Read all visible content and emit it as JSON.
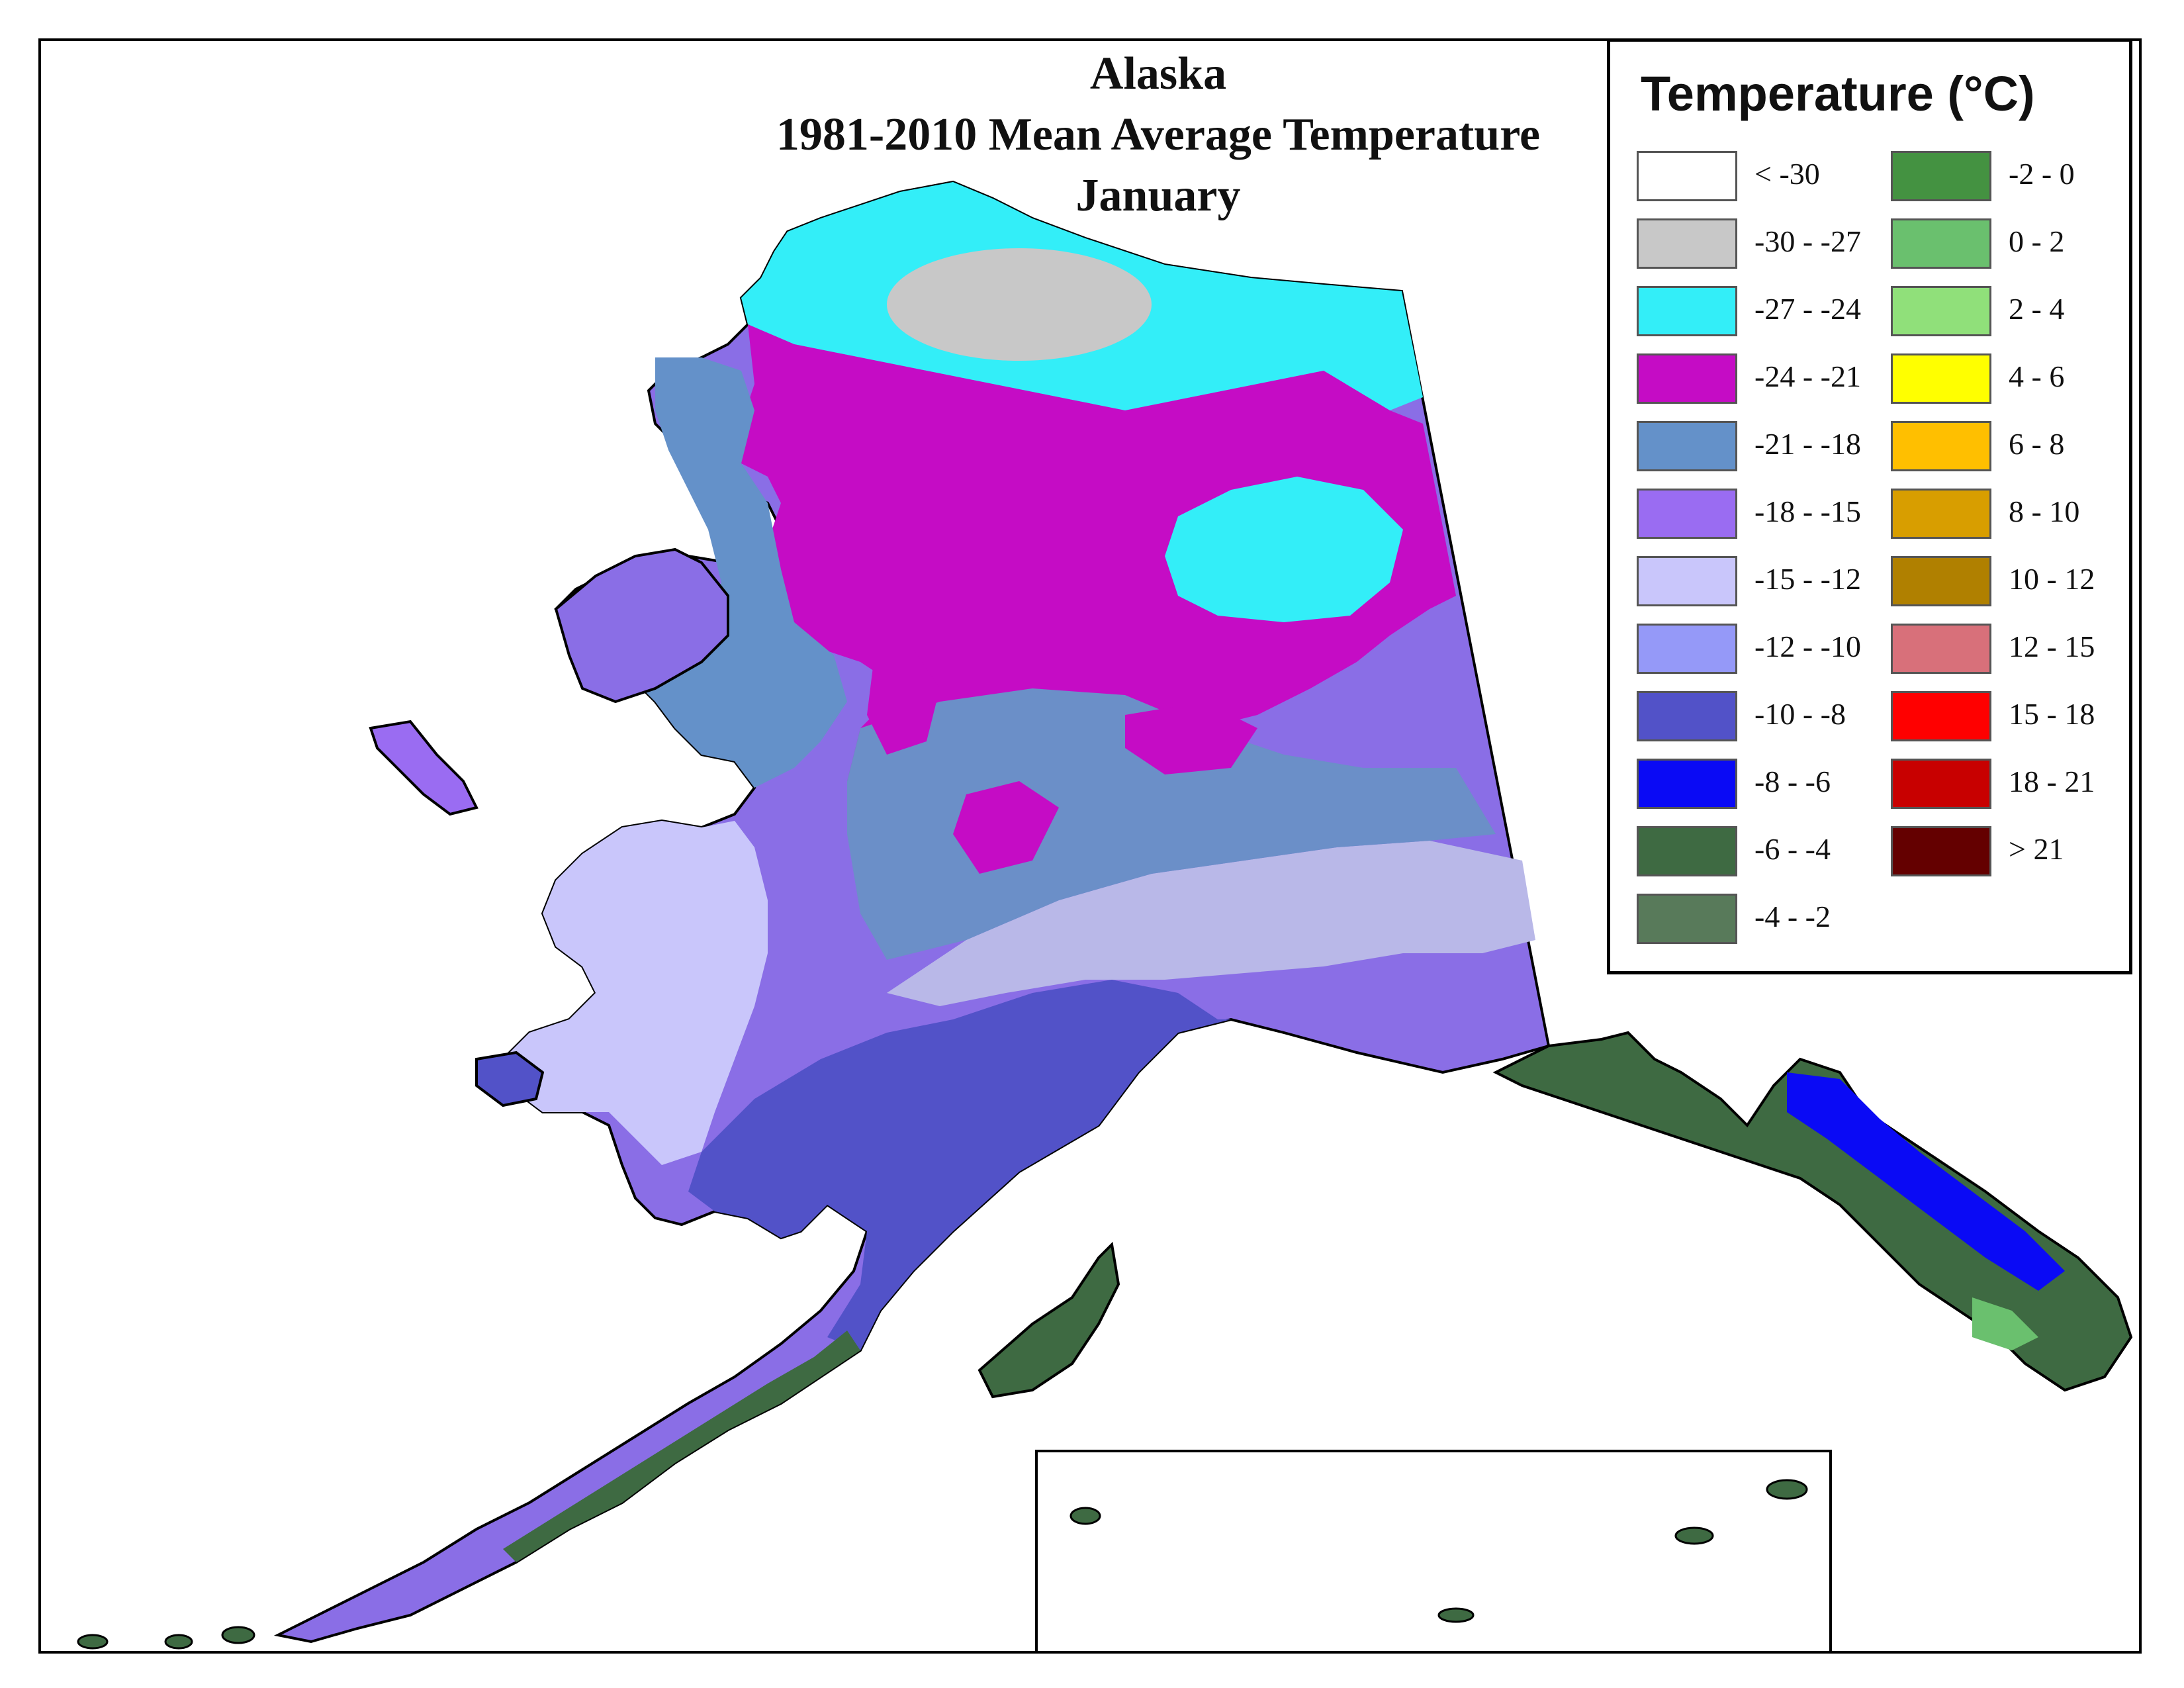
{
  "title": {
    "line1": "Alaska",
    "line2": "1981-2010 Mean Average Temperature",
    "line3": "January"
  },
  "legend": {
    "title": "Temperature (°C)",
    "left_items": [
      {
        "label": "< -30",
        "color": "#ffffff"
      },
      {
        "label": "-30 - -27",
        "color": "#c8c8c8"
      },
      {
        "label": "-27 - -24",
        "color": "#33eef8"
      },
      {
        "label": "-24 - -21",
        "color": "#c50cc5"
      },
      {
        "label": "-21 - -18",
        "color": "#6491c9"
      },
      {
        "label": "-18 - -15",
        "color": "#9a6cf2"
      },
      {
        "label": "-15 - -12",
        "color": "#c9c6fb"
      },
      {
        "label": "-12 - -10",
        "color": "#9599f8"
      },
      {
        "label": "-10 - -8",
        "color": "#5252c8"
      },
      {
        "label": "-8 - -6",
        "color": "#0a0af5"
      },
      {
        "label": "-6 - -4",
        "color": "#3e6a42"
      },
      {
        "label": "-4 - -2",
        "color": "#587a5a"
      }
    ],
    "right_items": [
      {
        "label": "-2 - 0",
        "color": "#449241"
      },
      {
        "label": "0 - 2",
        "color": "#6ac06e"
      },
      {
        "label": "2 - 4",
        "color": "#90e07a"
      },
      {
        "label": "4 - 6",
        "color": "#ffff00"
      },
      {
        "label": "6 - 8",
        "color": "#ffbf00"
      },
      {
        "label": "8 - 10",
        "color": "#d89e00"
      },
      {
        "label": "10 - 12",
        "color": "#b08000"
      },
      {
        "label": "12 - 15",
        "color": "#d8707a"
      },
      {
        "label": "15 - 18",
        "color": "#ff0000"
      },
      {
        "label": "18 - 21",
        "color": "#c80000"
      },
      {
        "label": "> 21",
        "color": "#640000"
      }
    ]
  }
}
